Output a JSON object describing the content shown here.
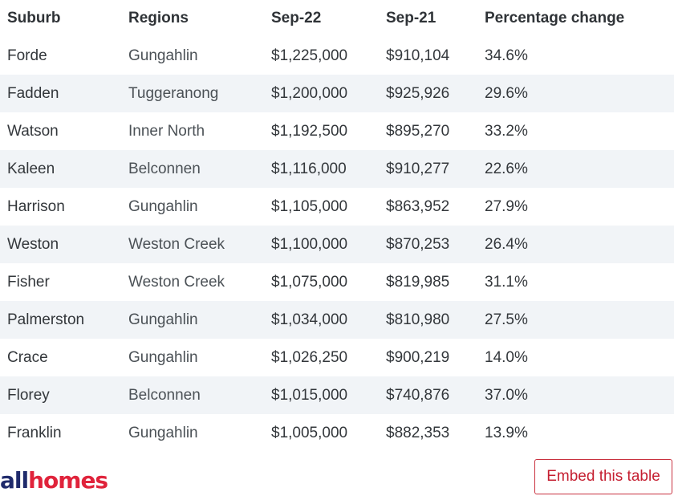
{
  "table": {
    "headers": [
      "Suburb",
      "Regions",
      "Sep-22",
      "Sep-21",
      "Percentage change"
    ],
    "rows": [
      [
        "Forde",
        "Gungahlin",
        "$1,225,000",
        "$910,104",
        "34.6%"
      ],
      [
        "Fadden",
        "Tuggeranong",
        "$1,200,000",
        "$925,926",
        "29.6%"
      ],
      [
        "Watson",
        "Inner North",
        "$1,192,500",
        "$895,270",
        "33.2%"
      ],
      [
        "Kaleen",
        "Belconnen",
        "$1,116,000",
        "$910,277",
        "22.6%"
      ],
      [
        "Harrison",
        "Gungahlin",
        "$1,105,000",
        "$863,952",
        "27.9%"
      ],
      [
        "Weston",
        "Weston Creek",
        "$1,100,000",
        "$870,253",
        "26.4%"
      ],
      [
        "Fisher",
        "Weston Creek",
        "$1,075,000",
        "$819,985",
        "31.1%"
      ],
      [
        "Palmerston",
        "Gungahlin",
        "$1,034,000",
        "$810,980",
        "27.5%"
      ],
      [
        "Crace",
        "Gungahlin",
        "$1,026,250",
        "$900,219",
        "14.0%"
      ],
      [
        "Florey",
        "Belconnen",
        "$1,015,000",
        "$740,876",
        "37.0%"
      ],
      [
        "Franklin",
        "Gungahlin",
        "$1,005,000",
        "$882,353",
        "13.9%"
      ]
    ]
  },
  "brand": {
    "part1": "all",
    "part2": "homes",
    "color_dark": "#1f2a6b",
    "color_red": "#e0233b"
  },
  "footer": {
    "embed_label": "Embed this table"
  }
}
